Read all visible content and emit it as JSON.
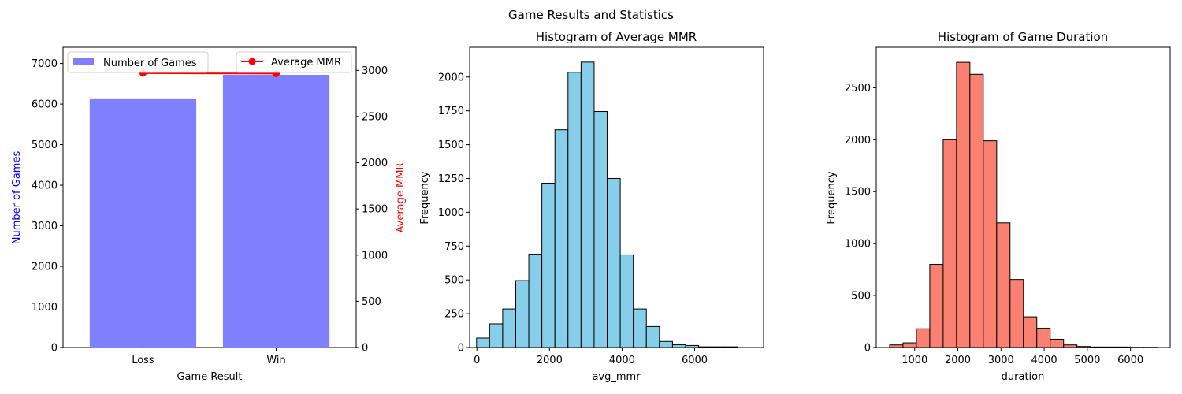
{
  "figure": {
    "suptitle": "Game Results and Statistics"
  },
  "chart_data": [
    {
      "type": "bar",
      "title": "",
      "categories": [
        "Loss",
        "Win"
      ],
      "xlabel": "Game Result",
      "ylabel": "Number of Games",
      "ylabel_color": "#0000ff",
      "ylim": [
        0,
        7400
      ],
      "yticks": [
        0,
        1000,
        2000,
        3000,
        4000,
        5000,
        6000,
        7000
      ],
      "series": [
        {
          "name": "Number of Games",
          "values": [
            6140,
            6720
          ],
          "color": "#8080ff",
          "axis": "left",
          "legend_location": "upper left"
        },
        {
          "name": "Average MMR",
          "values": [
            2970,
            2965
          ],
          "color": "#ff0000",
          "axis": "right",
          "marker": "circle",
          "legend_location": "upper right"
        }
      ],
      "ylabel2": "Average MMR",
      "ylabel2_color": "#ff0000",
      "ylim2": [
        0,
        3250
      ],
      "yticks2": [
        0,
        500,
        1000,
        1500,
        2000,
        2500,
        3000
      ],
      "grid": false
    },
    {
      "type": "bar",
      "title": "Histogram of Average MMR",
      "xlabel": "avg_mmr",
      "ylabel": "Frequency",
      "color": "#87ceeb",
      "edgecolor": "#000000",
      "bin_start": -10,
      "bin_width": 360,
      "values": [
        70,
        175,
        285,
        495,
        690,
        1215,
        1610,
        2035,
        2110,
        1745,
        1250,
        685,
        285,
        155,
        45,
        20,
        15,
        5,
        5,
        5
      ],
      "xlim": [
        -200,
        7900
      ],
      "ylim": [
        0,
        2220
      ],
      "xticks": [
        0,
        2000,
        4000,
        6000
      ],
      "yticks": [
        0,
        250,
        500,
        750,
        1000,
        1250,
        1500,
        1750,
        2000
      ],
      "grid": false
    },
    {
      "type": "bar",
      "title": "Histogram of Game Duration",
      "xlabel": "duration",
      "ylabel": "Frequency",
      "color": "#fa8072",
      "edgecolor": "#000000",
      "bin_start": 420,
      "bin_width": 310,
      "values": [
        25,
        45,
        180,
        800,
        2000,
        2745,
        2630,
        1990,
        1200,
        655,
        295,
        185,
        80,
        25,
        10,
        5,
        5,
        5,
        2,
        2
      ],
      "xlim": [
        110,
        6920
      ],
      "ylim": [
        0,
        2890
      ],
      "xticks": [
        1000,
        2000,
        3000,
        4000,
        5000,
        6000
      ],
      "yticks": [
        0,
        500,
        1000,
        1500,
        2000,
        2500
      ],
      "grid": false
    }
  ]
}
